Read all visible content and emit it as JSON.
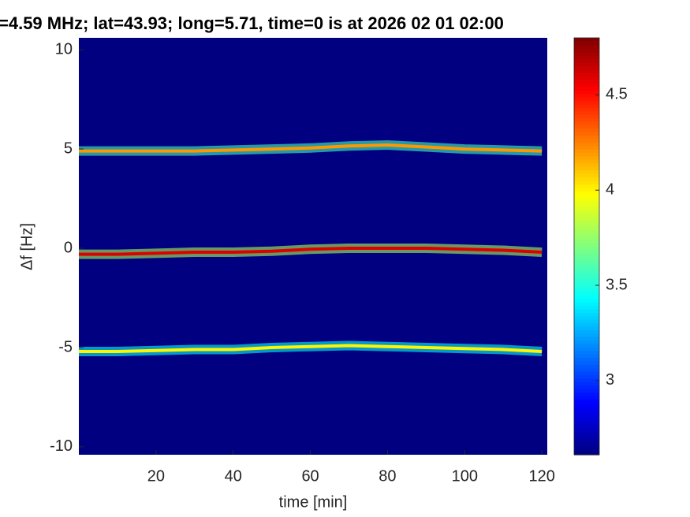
{
  "chart_data": {
    "type": "heatmap",
    "title": "=4.59 MHz;  lat=43.93; long=5.71, time=0 is at 2026 02 01 02:00",
    "xlabel": "time [min]",
    "ylabel": "Δf [Hz]",
    "x": [
      0,
      10,
      20,
      30,
      40,
      50,
      60,
      70,
      80,
      90,
      100,
      110,
      120
    ],
    "series": [
      {
        "values": [
          4.9,
          4.9,
          4.9,
          4.9,
          4.95,
          5.0,
          5.05,
          5.15,
          5.2,
          5.1,
          5.0,
          4.95,
          4.9
        ],
        "level": 4.2
      },
      {
        "values": [
          -0.3,
          -0.3,
          -0.25,
          -0.2,
          -0.2,
          -0.15,
          -0.05,
          0.0,
          0.0,
          0.0,
          -0.05,
          -0.1,
          -0.2
        ],
        "level": 4.6
      },
      {
        "values": [
          -5.2,
          -5.2,
          -5.15,
          -5.1,
          -5.1,
          -5.0,
          -4.95,
          -4.9,
          -4.95,
          -5.0,
          -5.05,
          -5.1,
          -5.2
        ],
        "level": 4.0
      }
    ],
    "xlim": [
      0,
      121.4
    ],
    "ylim": [
      -10.4,
      10.6
    ],
    "xticks": [
      20,
      40,
      60,
      80,
      100,
      120
    ],
    "yticks": [
      -10,
      -5,
      0,
      5,
      10
    ],
    "colormap": "jet",
    "colorbar": {
      "lim": [
        2.61,
        4.8
      ],
      "ticks": [
        3,
        3.5,
        4,
        4.5
      ]
    }
  }
}
